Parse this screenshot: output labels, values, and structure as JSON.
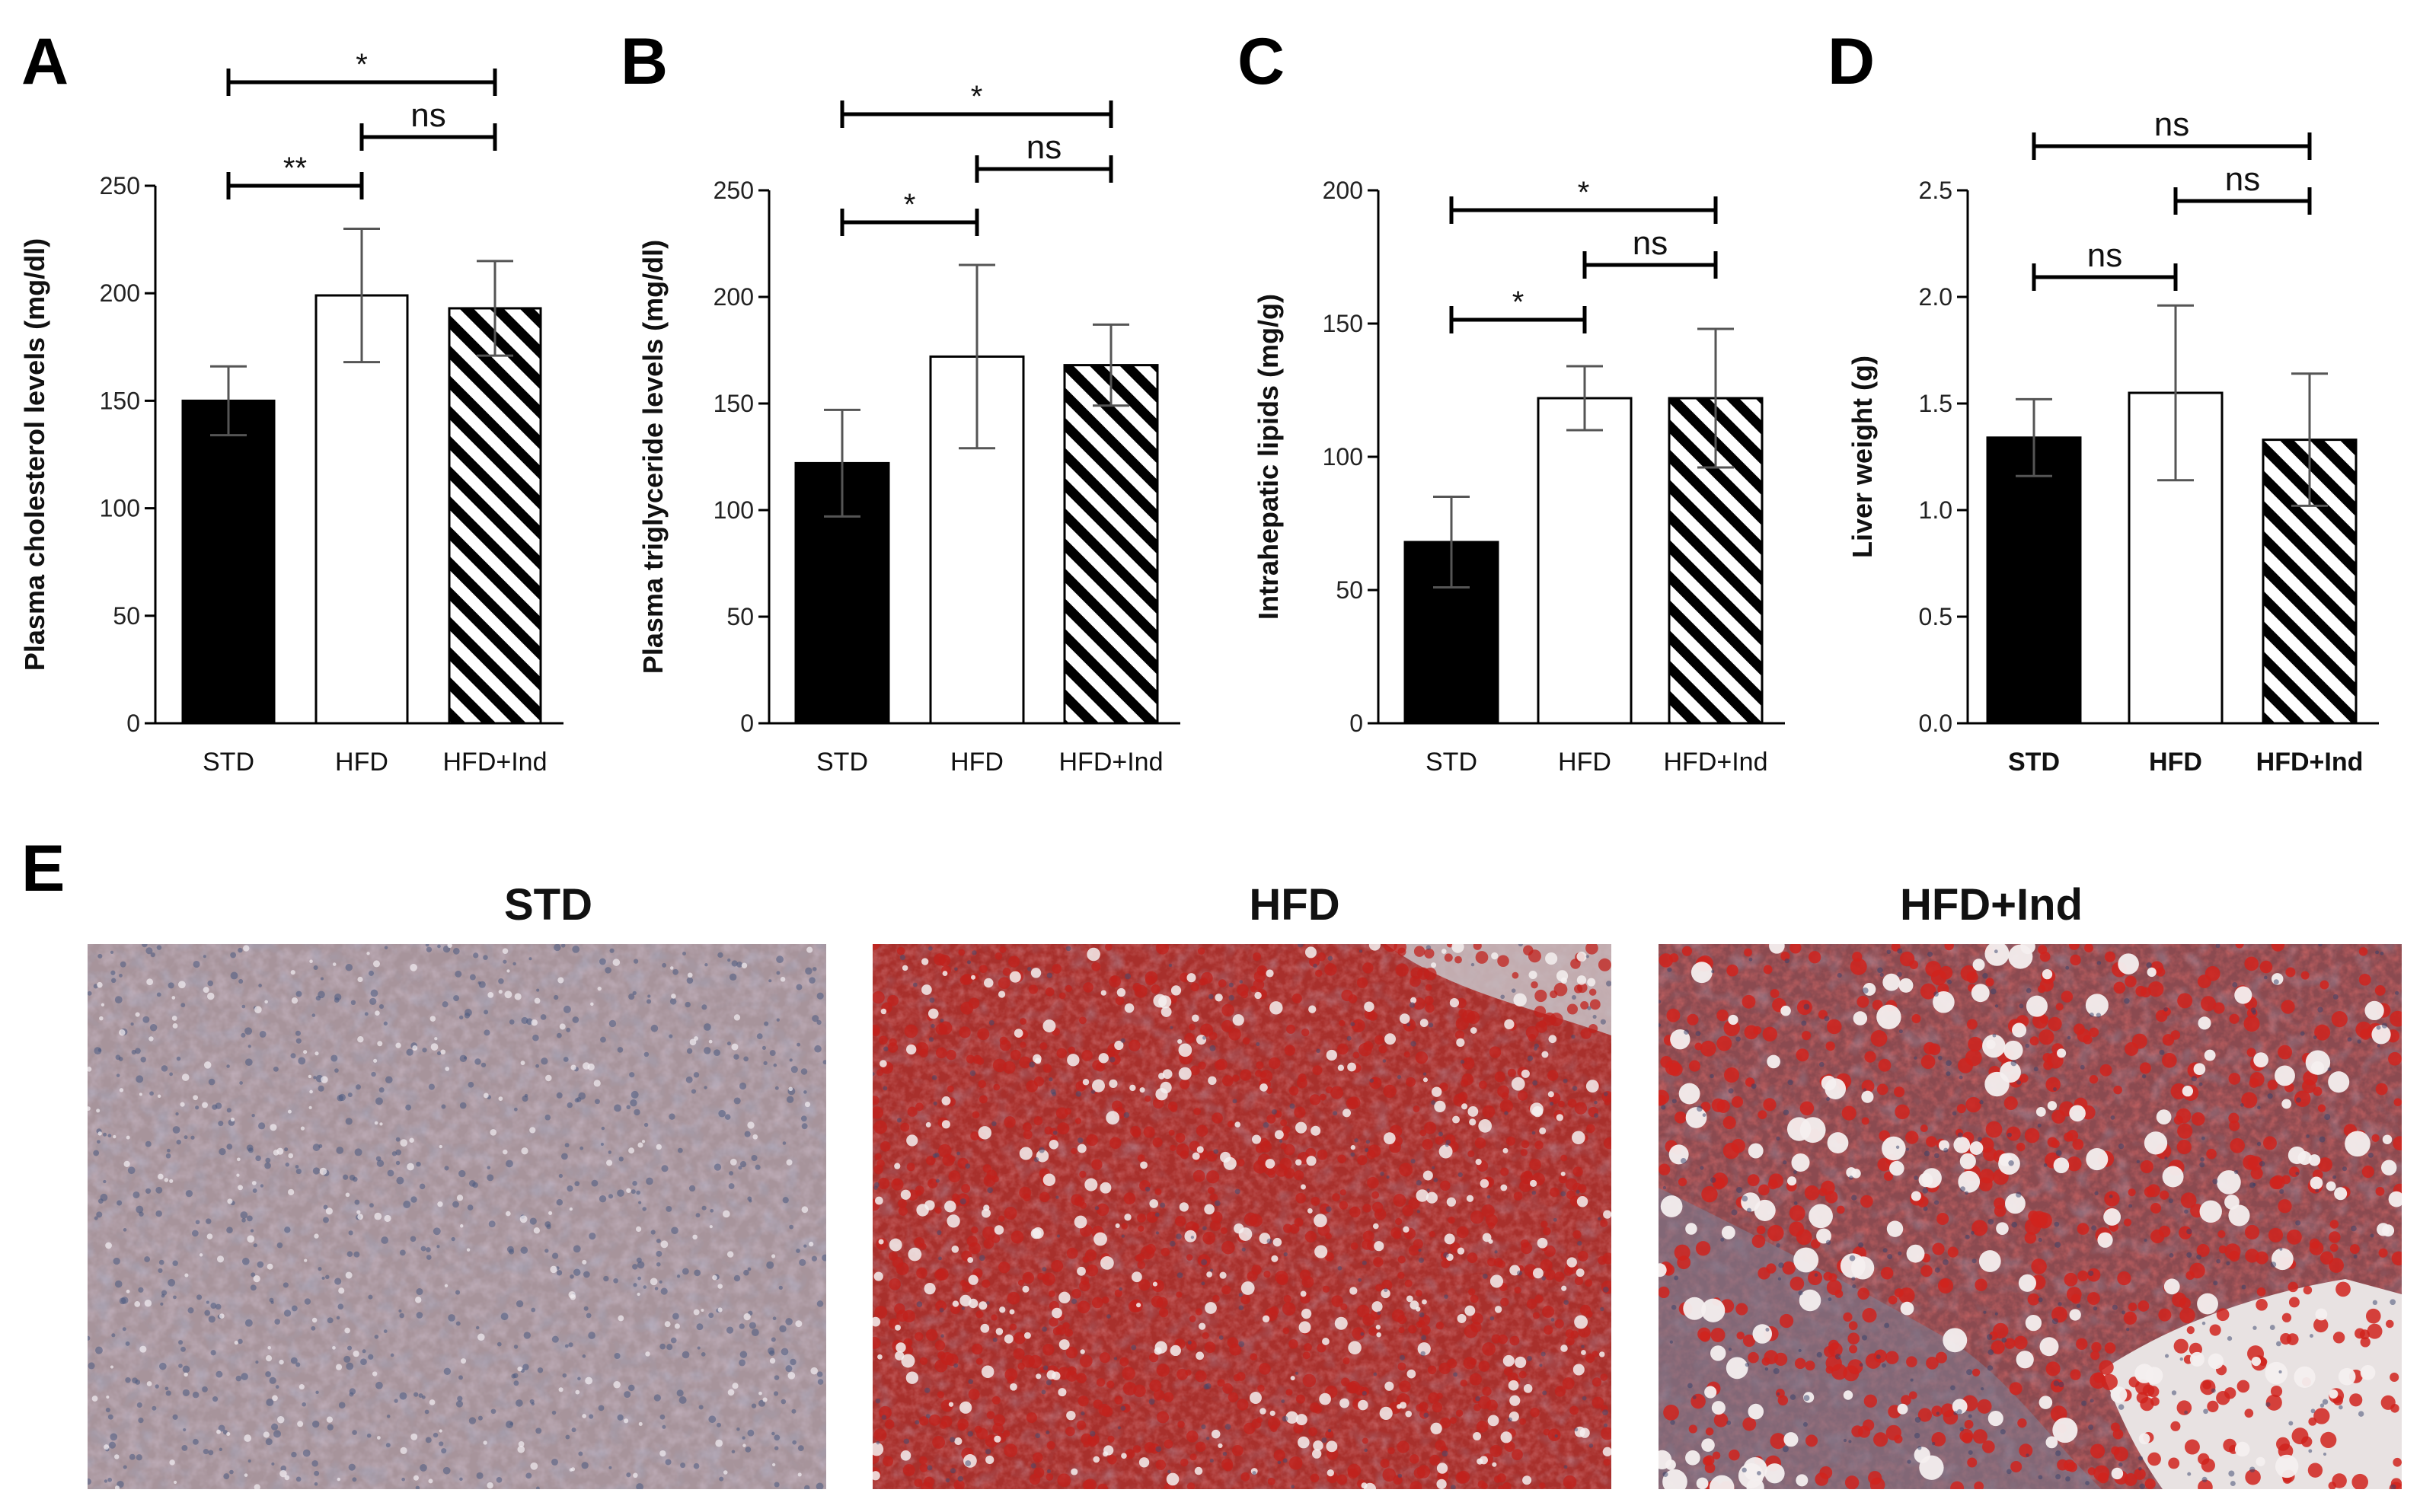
{
  "chart_data": [
    {
      "panel": "A",
      "type": "bar",
      "categories": [
        "STD",
        "HFD",
        "HFD+Ind"
      ],
      "values": [
        150,
        199,
        193
      ],
      "errors": [
        16,
        31,
        22
      ],
      "ylabel": "Plasma cholesterol levels (mg/dl)",
      "xlabel": "",
      "ylim": [
        0,
        250
      ],
      "yticks": [
        "0",
        "50",
        "100",
        "150",
        "200",
        "250"
      ],
      "fills": [
        "solid-black",
        "white",
        "diagonal-hatch"
      ],
      "comparisons": [
        {
          "from": "STD",
          "to": "HFD+Ind",
          "label": "*"
        },
        {
          "from": "HFD",
          "to": "HFD+Ind",
          "label": "ns"
        },
        {
          "from": "STD",
          "to": "HFD",
          "label": "**"
        }
      ]
    },
    {
      "panel": "B",
      "type": "bar",
      "categories": [
        "STD",
        "HFD",
        "HFD+Ind"
      ],
      "values": [
        122,
        172,
        168
      ],
      "errors": [
        25,
        43,
        19
      ],
      "ylabel": "Plasma triglyceride levels (mg/dl)",
      "xlabel": "",
      "ylim": [
        0,
        250
      ],
      "yticks": [
        "0",
        "50",
        "100",
        "150",
        "200",
        "250"
      ],
      "fills": [
        "solid-black",
        "white",
        "diagonal-hatch"
      ],
      "comparisons": [
        {
          "from": "STD",
          "to": "HFD+Ind",
          "label": "*"
        },
        {
          "from": "HFD",
          "to": "HFD+Ind",
          "label": "ns"
        },
        {
          "from": "STD",
          "to": "HFD",
          "label": "*"
        }
      ]
    },
    {
      "panel": "C",
      "type": "bar",
      "categories": [
        "STD",
        "HFD",
        "HFD+Ind"
      ],
      "values": [
        68,
        122,
        122
      ],
      "errors": [
        17,
        12,
        26
      ],
      "ylabel": "Intrahepatic lipids (mg/g)",
      "xlabel": "",
      "ylim": [
        0,
        200
      ],
      "yticks": [
        "0",
        "50",
        "100",
        "150",
        "200"
      ],
      "fills": [
        "solid-black",
        "white",
        "diagonal-hatch"
      ],
      "comparisons": [
        {
          "from": "STD",
          "to": "HFD+Ind",
          "label": "*"
        },
        {
          "from": "HFD",
          "to": "HFD+Ind",
          "label": "ns"
        },
        {
          "from": "STD",
          "to": "HFD",
          "label": "*"
        }
      ]
    },
    {
      "panel": "D",
      "type": "bar",
      "categories": [
        "STD",
        "HFD",
        "HFD+Ind"
      ],
      "values": [
        1.34,
        1.55,
        1.33
      ],
      "errors": [
        0.18,
        0.41,
        0.31
      ],
      "ylabel": "Liver weight (g)",
      "xlabel": "",
      "ylim": [
        0,
        2.5
      ],
      "yticks": [
        "0.0",
        "0.5",
        "1.0",
        "1.5",
        "2.0",
        "2.5"
      ],
      "fills": [
        "solid-black",
        "white",
        "diagonal-hatch"
      ],
      "comparisons": [
        {
          "from": "STD",
          "to": "HFD+Ind",
          "label": "ns"
        },
        {
          "from": "HFD",
          "to": "HFD+Ind",
          "label": "ns"
        },
        {
          "from": "STD",
          "to": "HFD",
          "label": "ns"
        }
      ]
    }
  ],
  "histology": {
    "panel": "E",
    "titles": [
      "STD",
      "HFD",
      "HFD+Ind"
    ],
    "image_description": [
      "Oil Red O stained liver section, little lipid",
      "Oil Red O stained liver section, moderate lipid droplets",
      "Oil Red O stained liver section, abundant lipid droplets"
    ]
  },
  "colors": {
    "bar_std": "#000000",
    "bar_hfd": "#ffffff",
    "hatch": "#000000",
    "stain_red": "#b22420",
    "tissue_std": "#9a8088",
    "background": "#ffffff"
  }
}
